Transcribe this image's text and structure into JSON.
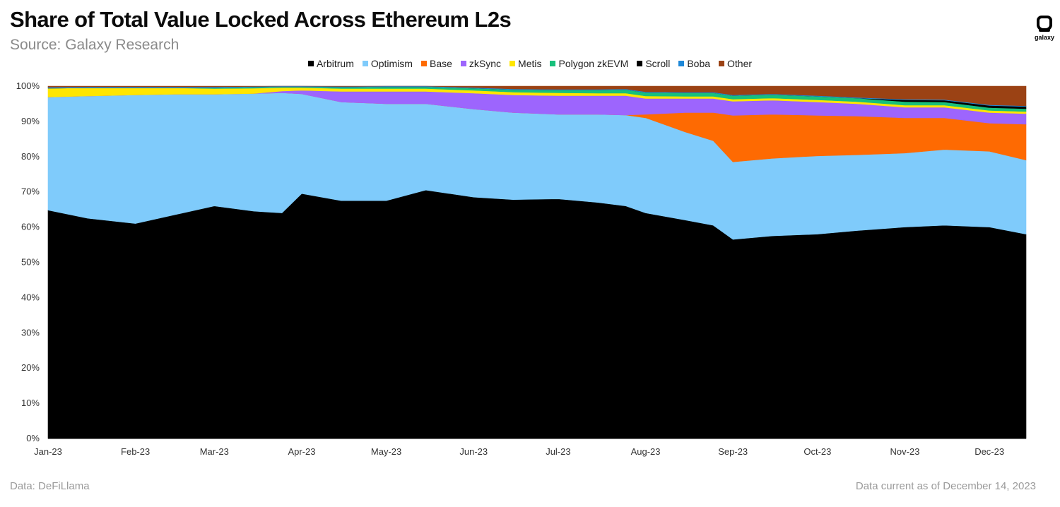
{
  "header": {
    "title": "Share of Total Value Locked Across Ethereum L2s",
    "subtitle": "Source: Galaxy Research",
    "logo_text": "galaxy"
  },
  "footer": {
    "left": "Data: DeFiLlama",
    "right": "Data current as of December 14, 2023"
  },
  "chart_data": {
    "type": "area",
    "stacked": true,
    "normalized": true,
    "title": "Share of Total Value Locked Across Ethereum L2s",
    "xlabel": "",
    "ylabel": "",
    "ylim": [
      0,
      100
    ],
    "yticks": [
      "0%",
      "10%",
      "20%",
      "30%",
      "40%",
      "50%",
      "60%",
      "70%",
      "80%",
      "90%",
      "100%"
    ],
    "xticks": [
      "Jan-23",
      "Feb-23",
      "Mar-23",
      "Apr-23",
      "May-23",
      "Jun-23",
      "Jul-23",
      "Aug-23",
      "Sep-23",
      "Oct-23",
      "Nov-23",
      "Dec-23"
    ],
    "legend_position": "top-center",
    "grid": false,
    "x": [
      "2023-01-01",
      "2023-01-15",
      "2023-02-01",
      "2023-02-15",
      "2023-03-01",
      "2023-03-15",
      "2023-03-25",
      "2023-04-01",
      "2023-04-15",
      "2023-05-01",
      "2023-05-15",
      "2023-06-01",
      "2023-06-15",
      "2023-07-01",
      "2023-07-15",
      "2023-07-25",
      "2023-08-01",
      "2023-08-15",
      "2023-08-25",
      "2023-09-01",
      "2023-09-15",
      "2023-10-01",
      "2023-10-15",
      "2023-11-01",
      "2023-11-15",
      "2023-12-01",
      "2023-12-14"
    ],
    "series": [
      {
        "name": "Arbitrum",
        "color": "#000000",
        "values": [
          64.8,
          62.5,
          61.0,
          63.5,
          66.0,
          64.5,
          64.0,
          69.5,
          67.5,
          67.5,
          70.5,
          68.5,
          67.8,
          68.0,
          67.0,
          66.0,
          64.0,
          62.0,
          60.5,
          56.5,
          57.5,
          58.0,
          59.0,
          60.0,
          60.5,
          60.0,
          58.0
        ]
      },
      {
        "name": "Optimism",
        "color": "#7fcbfb",
        "values": [
          32.1,
          34.7,
          36.5,
          34.2,
          31.7,
          33.4,
          34.1,
          28.3,
          28.0,
          27.5,
          24.5,
          25.0,
          24.7,
          24.0,
          25.0,
          25.8,
          27.0,
          25.0,
          24.0,
          22.0,
          22.0,
          22.2,
          21.5,
          21.0,
          21.5,
          21.5,
          21.0
        ]
      },
      {
        "name": "Base",
        "color": "#fe6a02",
        "values": [
          0,
          0,
          0,
          0,
          0,
          0,
          0,
          0,
          0,
          0,
          0,
          0,
          0,
          0,
          0,
          0,
          1.0,
          5.5,
          8.0,
          13.2,
          12.5,
          11.5,
          11.0,
          10.0,
          9.0,
          8.0,
          10.2
        ]
      },
      {
        "name": "zkSync",
        "color": "#9d65fd",
        "values": [
          0,
          0,
          0,
          0,
          0,
          0,
          0.5,
          1.0,
          3.0,
          3.5,
          3.5,
          4.5,
          5.0,
          5.3,
          5.3,
          5.5,
          4.5,
          4.0,
          4.0,
          4.0,
          4.0,
          3.8,
          3.5,
          3.0,
          3.0,
          3.0,
          3.0
        ]
      },
      {
        "name": "Metis",
        "color": "#ffe600",
        "values": [
          2.5,
          2.3,
          2.0,
          1.8,
          1.6,
          1.5,
          1.0,
          0.8,
          0.8,
          0.8,
          0.8,
          0.8,
          0.8,
          0.8,
          0.7,
          0.7,
          0.7,
          0.6,
          0.6,
          0.6,
          0.6,
          0.6,
          0.6,
          0.6,
          0.6,
          0.6,
          0.6
        ]
      },
      {
        "name": "Polygon zkEVM",
        "color": "#17c07b",
        "values": [
          0,
          0,
          0,
          0,
          0.2,
          0.3,
          0.2,
          0.2,
          0.4,
          0.5,
          0.5,
          0.6,
          0.7,
          0.8,
          0.9,
          1.0,
          1.0,
          1.0,
          1.0,
          1.0,
          1.0,
          1.0,
          1.0,
          1.0,
          0.9,
          0.8,
          0.8
        ]
      },
      {
        "name": "Scroll",
        "color": "#000000",
        "values": [
          0,
          0,
          0,
          0,
          0,
          0,
          0,
          0,
          0,
          0,
          0,
          0,
          0,
          0,
          0,
          0,
          0,
          0,
          0,
          0,
          0,
          0,
          0,
          0.5,
          0.5,
          0.6,
          0.6
        ]
      },
      {
        "name": "Boba",
        "color": "#1e88d8",
        "values": [
          0.3,
          0.3,
          0.3,
          0.3,
          0.3,
          0.2,
          0.2,
          0.2,
          0.2,
          0.2,
          0.2,
          0.2,
          0.2,
          0.2,
          0.2,
          0.2,
          0.2,
          0.2,
          0.2,
          0.2,
          0.2,
          0.2,
          0.2,
          0.2,
          0.2,
          0.2,
          0.2
        ]
      },
      {
        "name": "Other",
        "color": "#9b4214",
        "values": [
          0.3,
          0.2,
          0.2,
          0.2,
          0.2,
          0.1,
          0,
          0,
          0.1,
          0,
          0,
          0.4,
          0.8,
          0.9,
          0.9,
          0.8,
          1.6,
          1.7,
          1.7,
          2.5,
          2.2,
          2.7,
          3.2,
          3.7,
          3.8,
          5.3,
          5.6
        ]
      }
    ]
  }
}
